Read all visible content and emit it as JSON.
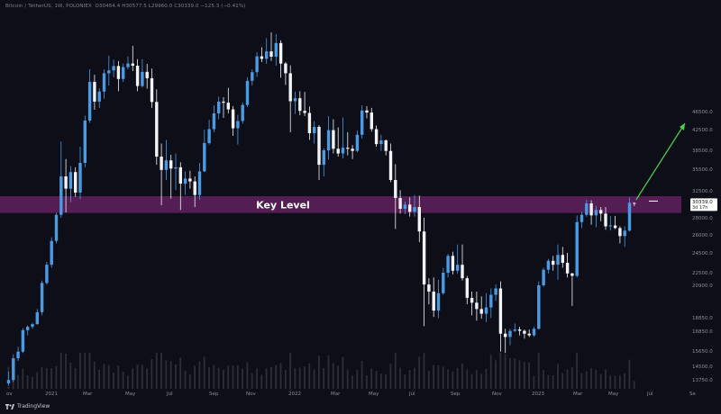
{
  "header": {
    "text": "Bitcoin / TetherUS, 1W, POLONIEX",
    "ohlc": "O30464.4 H30577.5 L29960.0 C30339.0 −125.3 (−0.41%)"
  },
  "footer": {
    "brand": "TradingView"
  },
  "annotation": {
    "key_level_label": "Key Level"
  },
  "colors": {
    "up_candle": "#4a9be4",
    "down_candle": "#f2f3f6",
    "key_level_band": "#5a1f5a",
    "arrow": "#4cd24c",
    "price_badge": "#ffffff",
    "background": "#0d0e17"
  },
  "chart_data": {
    "type": "candlestick",
    "price_axis_ticks": [
      46500.0,
      42500.0,
      38500.0,
      35500.0,
      32500.0,
      28000.0,
      26000.0,
      24500.0,
      22500.0,
      20900.0,
      18850.0,
      16850.0,
      15650.0,
      14500.0,
      13750.0
    ],
    "time_axis_labels": [
      "ov",
      "2021",
      "Mar",
      "May",
      "Jul",
      "Sep",
      "Nov",
      "2022",
      "Mar",
      "May",
      "Jul",
      "Sep",
      "Nov",
      "2023",
      "Mar",
      "May",
      "Jul",
      "Se"
    ],
    "current_price": "30339.0",
    "countdown": "3d 17h",
    "key_level_range": [
      28800,
      31600
    ],
    "arrow_target_price": 44000,
    "candles": [
      {
        "o": 12900,
        "h": 14200,
        "l": 12500,
        "c": 13700
      },
      {
        "o": 13700,
        "h": 15400,
        "l": 13200,
        "c": 15100
      },
      {
        "o": 15100,
        "h": 15900,
        "l": 14900,
        "c": 15600
      },
      {
        "o": 15600,
        "h": 17300,
        "l": 15500,
        "c": 17000
      },
      {
        "o": 17000,
        "h": 17700,
        "l": 16600,
        "c": 17500
      },
      {
        "o": 17500,
        "h": 18100,
        "l": 17200,
        "c": 17900
      },
      {
        "o": 17900,
        "h": 19400,
        "l": 17800,
        "c": 19200
      },
      {
        "o": 19200,
        "h": 21500,
        "l": 19000,
        "c": 21200
      },
      {
        "o": 21200,
        "h": 23600,
        "l": 21000,
        "c": 23300
      },
      {
        "o": 23300,
        "h": 25800,
        "l": 23000,
        "c": 25500
      },
      {
        "o": 25500,
        "h": 28800,
        "l": 25300,
        "c": 28500
      },
      {
        "o": 28500,
        "h": 40200,
        "l": 28000,
        "c": 34500
      },
      {
        "o": 34500,
        "h": 37100,
        "l": 28900,
        "c": 32800
      },
      {
        "o": 32800,
        "h": 36000,
        "l": 30600,
        "c": 35100
      },
      {
        "o": 35100,
        "h": 35800,
        "l": 31500,
        "c": 32200
      },
      {
        "o": 32200,
        "h": 39200,
        "l": 31100,
        "c": 36500
      },
      {
        "o": 36500,
        "h": 45600,
        "l": 35800,
        "c": 44500
      },
      {
        "o": 44500,
        "h": 58000,
        "l": 44000,
        "c": 54500
      },
      {
        "o": 54500,
        "h": 56500,
        "l": 47000,
        "c": 49200
      },
      {
        "o": 49200,
        "h": 52800,
        "l": 47500,
        "c": 51900
      },
      {
        "o": 51900,
        "h": 58000,
        "l": 50000,
        "c": 56900
      },
      {
        "o": 56900,
        "h": 61800,
        "l": 53500,
        "c": 57700
      },
      {
        "o": 57700,
        "h": 60700,
        "l": 55800,
        "c": 58900
      },
      {
        "o": 58900,
        "h": 60300,
        "l": 52000,
        "c": 55300
      },
      {
        "o": 55300,
        "h": 59600,
        "l": 54500,
        "c": 58600
      },
      {
        "o": 58600,
        "h": 61600,
        "l": 58000,
        "c": 59600
      },
      {
        "o": 59600,
        "h": 64600,
        "l": 57500,
        "c": 59000
      },
      {
        "o": 59000,
        "h": 60800,
        "l": 52000,
        "c": 53400
      },
      {
        "o": 53400,
        "h": 60800,
        "l": 53000,
        "c": 57300
      },
      {
        "o": 57300,
        "h": 59500,
        "l": 52700,
        "c": 55500
      },
      {
        "o": 55500,
        "h": 58200,
        "l": 47500,
        "c": 49100
      },
      {
        "o": 49100,
        "h": 52500,
        "l": 36200,
        "c": 37500
      },
      {
        "o": 37500,
        "h": 39800,
        "l": 30100,
        "c": 35400
      },
      {
        "o": 35400,
        "h": 40500,
        "l": 34000,
        "c": 36900
      },
      {
        "o": 36900,
        "h": 37800,
        "l": 31200,
        "c": 35600
      },
      {
        "o": 35600,
        "h": 38000,
        "l": 32600,
        "c": 35800
      },
      {
        "o": 35800,
        "h": 36600,
        "l": 29300,
        "c": 33500
      },
      {
        "o": 33500,
        "h": 35200,
        "l": 31800,
        "c": 34200
      },
      {
        "o": 34200,
        "h": 35300,
        "l": 32800,
        "c": 33800
      },
      {
        "o": 33800,
        "h": 34500,
        "l": 29800,
        "c": 31800
      },
      {
        "o": 31800,
        "h": 36500,
        "l": 31000,
        "c": 35200
      },
      {
        "o": 35200,
        "h": 42500,
        "l": 35100,
        "c": 39900
      },
      {
        "o": 39900,
        "h": 44700,
        "l": 39600,
        "c": 42600
      },
      {
        "o": 42600,
        "h": 48200,
        "l": 42000,
        "c": 46100
      },
      {
        "o": 46100,
        "h": 50500,
        "l": 44800,
        "c": 49200
      },
      {
        "o": 49200,
        "h": 50400,
        "l": 45100,
        "c": 48900
      },
      {
        "o": 48900,
        "h": 52900,
        "l": 46100,
        "c": 47100
      },
      {
        "o": 47100,
        "h": 48000,
        "l": 41300,
        "c": 42800
      },
      {
        "o": 42800,
        "h": 45800,
        "l": 39600,
        "c": 44400
      },
      {
        "o": 44400,
        "h": 49000,
        "l": 43800,
        "c": 48300
      },
      {
        "o": 48300,
        "h": 55800,
        "l": 47700,
        "c": 54800
      },
      {
        "o": 54800,
        "h": 58000,
        "l": 53600,
        "c": 57200
      },
      {
        "o": 57200,
        "h": 62800,
        "l": 55900,
        "c": 61600
      },
      {
        "o": 61600,
        "h": 64200,
        "l": 60000,
        "c": 60900
      },
      {
        "o": 60900,
        "h": 66800,
        "l": 59500,
        "c": 63000
      },
      {
        "o": 63000,
        "h": 68500,
        "l": 60300,
        "c": 61500
      },
      {
        "o": 61500,
        "h": 68000,
        "l": 59000,
        "c": 65400
      },
      {
        "o": 65400,
        "h": 66200,
        "l": 55700,
        "c": 59600
      },
      {
        "o": 59600,
        "h": 60000,
        "l": 53700,
        "c": 56900
      },
      {
        "o": 56900,
        "h": 59100,
        "l": 42000,
        "c": 49300
      },
      {
        "o": 49300,
        "h": 51900,
        "l": 46000,
        "c": 50100
      },
      {
        "o": 50100,
        "h": 52000,
        "l": 45700,
        "c": 46700
      },
      {
        "o": 46700,
        "h": 51800,
        "l": 45500,
        "c": 46200
      },
      {
        "o": 46200,
        "h": 47900,
        "l": 40500,
        "c": 41800
      },
      {
        "o": 41800,
        "h": 44400,
        "l": 39800,
        "c": 43100
      },
      {
        "o": 43100,
        "h": 43500,
        "l": 34000,
        "c": 36200
      },
      {
        "o": 36200,
        "h": 38900,
        "l": 34500,
        "c": 38500
      },
      {
        "o": 38500,
        "h": 45500,
        "l": 37000,
        "c": 42400
      },
      {
        "o": 42400,
        "h": 44800,
        "l": 38000,
        "c": 38800
      },
      {
        "o": 38800,
        "h": 43000,
        "l": 37500,
        "c": 38000
      },
      {
        "o": 38000,
        "h": 45200,
        "l": 37200,
        "c": 39000
      },
      {
        "o": 39000,
        "h": 42000,
        "l": 37700,
        "c": 38800
      },
      {
        "o": 38800,
        "h": 39500,
        "l": 37100,
        "c": 38400
      },
      {
        "o": 38400,
        "h": 42300,
        "l": 38200,
        "c": 41500
      },
      {
        "o": 41500,
        "h": 48200,
        "l": 40800,
        "c": 46800
      },
      {
        "o": 46800,
        "h": 48000,
        "l": 45000,
        "c": 46300
      },
      {
        "o": 46300,
        "h": 47500,
        "l": 42100,
        "c": 42600
      },
      {
        "o": 42600,
        "h": 43400,
        "l": 39200,
        "c": 39700
      },
      {
        "o": 39700,
        "h": 41500,
        "l": 38400,
        "c": 40400
      },
      {
        "o": 40400,
        "h": 40600,
        "l": 37700,
        "c": 38400
      },
      {
        "o": 38400,
        "h": 39800,
        "l": 33700,
        "c": 34000
      },
      {
        "o": 34000,
        "h": 36300,
        "l": 26700,
        "c": 31300
      },
      {
        "o": 31300,
        "h": 32600,
        "l": 28700,
        "c": 29500
      },
      {
        "o": 29500,
        "h": 30700,
        "l": 28600,
        "c": 30200
      },
      {
        "o": 30200,
        "h": 31400,
        "l": 28200,
        "c": 29000
      },
      {
        "o": 29000,
        "h": 31800,
        "l": 28200,
        "c": 29800
      },
      {
        "o": 29800,
        "h": 31700,
        "l": 25400,
        "c": 26400
      },
      {
        "o": 26400,
        "h": 28000,
        "l": 17600,
        "c": 21000
      },
      {
        "o": 21000,
        "h": 21800,
        "l": 19700,
        "c": 20500
      },
      {
        "o": 20500,
        "h": 21900,
        "l": 18900,
        "c": 19300
      },
      {
        "o": 19300,
        "h": 21600,
        "l": 18800,
        "c": 20400
      },
      {
        "o": 20400,
        "h": 23000,
        "l": 20300,
        "c": 22500
      },
      {
        "o": 22500,
        "h": 24400,
        "l": 21900,
        "c": 24200
      },
      {
        "o": 24200,
        "h": 24600,
        "l": 22300,
        "c": 22700
      },
      {
        "o": 22700,
        "h": 25200,
        "l": 22400,
        "c": 23300
      },
      {
        "o": 23300,
        "h": 25200,
        "l": 21500,
        "c": 21800
      },
      {
        "o": 21800,
        "h": 22100,
        "l": 19700,
        "c": 20100
      },
      {
        "o": 20100,
        "h": 20500,
        "l": 19000,
        "c": 19800
      },
      {
        "o": 19800,
        "h": 20500,
        "l": 18400,
        "c": 19400
      },
      {
        "o": 19400,
        "h": 20200,
        "l": 18700,
        "c": 19100
      },
      {
        "o": 19100,
        "h": 20400,
        "l": 18200,
        "c": 19500
      },
      {
        "o": 19500,
        "h": 20700,
        "l": 18800,
        "c": 20300
      },
      {
        "o": 20300,
        "h": 21000,
        "l": 19900,
        "c": 20700
      },
      {
        "o": 20700,
        "h": 21400,
        "l": 15600,
        "c": 16700
      },
      {
        "o": 16700,
        "h": 17200,
        "l": 15500,
        "c": 16500
      },
      {
        "o": 16500,
        "h": 17200,
        "l": 16000,
        "c": 16900
      },
      {
        "o": 16900,
        "h": 18000,
        "l": 16800,
        "c": 17100
      },
      {
        "o": 17100,
        "h": 17500,
        "l": 16600,
        "c": 16900
      },
      {
        "o": 16900,
        "h": 17100,
        "l": 16400,
        "c": 16700
      },
      {
        "o": 16700,
        "h": 17100,
        "l": 16500,
        "c": 16600
      },
      {
        "o": 16600,
        "h": 17500,
        "l": 16500,
        "c": 17200
      },
      {
        "o": 17200,
        "h": 21400,
        "l": 17100,
        "c": 20900
      },
      {
        "o": 20900,
        "h": 23000,
        "l": 20800,
        "c": 22800
      },
      {
        "o": 22800,
        "h": 23900,
        "l": 22400,
        "c": 23700
      },
      {
        "o": 23700,
        "h": 24200,
        "l": 22700,
        "c": 23300
      },
      {
        "o": 23300,
        "h": 25200,
        "l": 21600,
        "c": 24300
      },
      {
        "o": 24300,
        "h": 25000,
        "l": 23000,
        "c": 23500
      },
      {
        "o": 23500,
        "h": 24500,
        "l": 21900,
        "c": 22400
      },
      {
        "o": 22400,
        "h": 22500,
        "l": 19600,
        "c": 22100
      },
      {
        "o": 22100,
        "h": 28400,
        "l": 21900,
        "c": 27500
      },
      {
        "o": 27500,
        "h": 29000,
        "l": 26800,
        "c": 28500
      },
      {
        "o": 28500,
        "h": 31000,
        "l": 28200,
        "c": 30400
      },
      {
        "o": 30400,
        "h": 30900,
        "l": 27200,
        "c": 28400
      },
      {
        "o": 28400,
        "h": 30000,
        "l": 26900,
        "c": 29300
      },
      {
        "o": 29300,
        "h": 29800,
        "l": 27600,
        "c": 28700
      },
      {
        "o": 28700,
        "h": 29800,
        "l": 26600,
        "c": 27000
      },
      {
        "o": 27000,
        "h": 28300,
        "l": 26500,
        "c": 27100
      },
      {
        "o": 27100,
        "h": 28300,
        "l": 26700,
        "c": 26800
      },
      {
        "o": 26800,
        "h": 27000,
        "l": 25300,
        "c": 25900
      },
      {
        "o": 25900,
        "h": 27000,
        "l": 25000,
        "c": 26500
      },
      {
        "o": 26500,
        "h": 31400,
        "l": 26400,
        "c": 30500
      },
      {
        "o": 30464.4,
        "h": 30577.5,
        "l": 29960.0,
        "c": 30339.0
      }
    ]
  }
}
